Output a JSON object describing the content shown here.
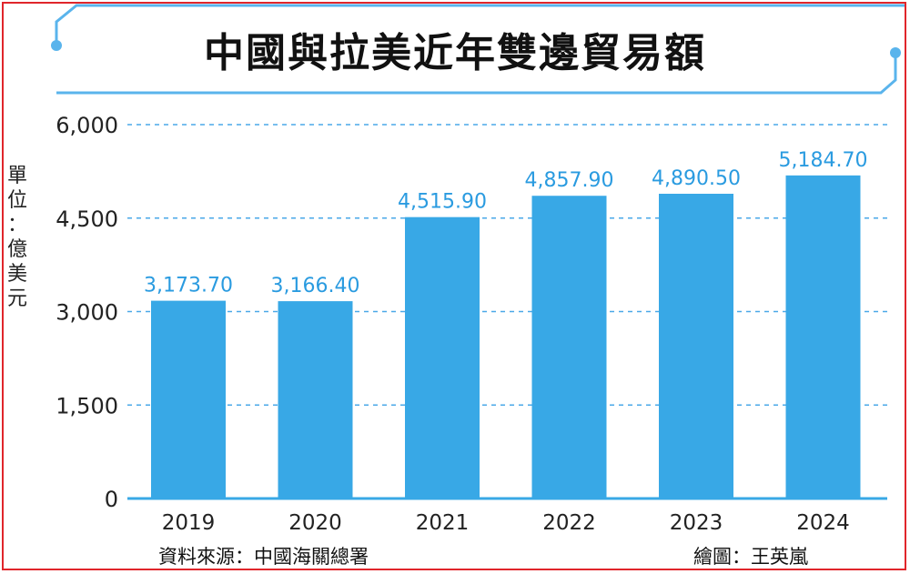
{
  "title": "中國與拉美近年雙邊貿易額",
  "unit_label": [
    "單",
    "位",
    "：",
    "億",
    "美",
    "元"
  ],
  "source": "資料來源：中國海關總署",
  "credit": "繪圖：王英嵐",
  "colors": {
    "bar": "#38a8e6",
    "value_label": "#2a9be0",
    "grid": "#4aa8e8",
    "axis": "#38a8e6",
    "deco": "#5ab4ec",
    "border": "#e0262b"
  },
  "chart_data": {
    "type": "bar",
    "categories": [
      "2019",
      "2020",
      "2021",
      "2022",
      "2023",
      "2024"
    ],
    "values": [
      3173.7,
      3166.4,
      4515.9,
      4857.9,
      4890.5,
      5184.7
    ],
    "value_labels": [
      "3,173.70",
      "3,166.40",
      "4,515.90",
      "4,857.90",
      "4,890.50",
      "5,184.70"
    ],
    "ylim": [
      0,
      6000
    ],
    "yticks": [
      0,
      1500,
      3000,
      4500,
      6000
    ],
    "ytick_labels": [
      "0",
      "1,500",
      "3,000",
      "4,500",
      "6,000"
    ],
    "ylabel": "單位：億美元",
    "grid": true
  }
}
